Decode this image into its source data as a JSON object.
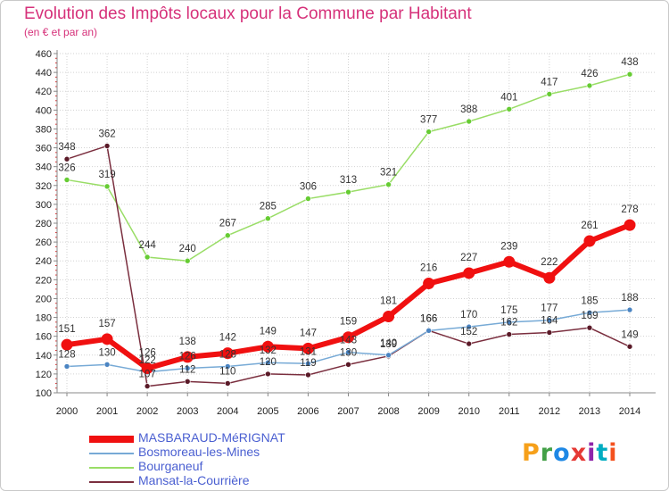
{
  "title": "Evolution des Impôts locaux pour la Commune par Habitant",
  "subtitle": "(en € et par an)",
  "logo": {
    "text": "Proxiti",
    "colors": [
      "#f6a01a",
      "#43a047",
      "#1e88e5",
      "#e53935",
      "#8e24aa",
      "#00acc1",
      "#f4511e"
    ]
  },
  "chart_data": {
    "type": "line",
    "title": "Evolution des Impôts locaux pour la Commune par Habitant",
    "subtitle": "(en € et par an)",
    "xlabel": "",
    "ylabel": "",
    "ylim": [
      100,
      460
    ],
    "ytick_step": 20,
    "grid": true,
    "legend_position": "bottom-left",
    "x": [
      2000,
      2001,
      2002,
      2003,
      2004,
      2005,
      2006,
      2007,
      2008,
      2009,
      2010,
      2011,
      2012,
      2013,
      2014
    ],
    "series": [
      {
        "name": "Bourganeuf",
        "color": "#99dd66",
        "marker_color": "#66cc33",
        "width": 1.5,
        "values": [
          326,
          319,
          244,
          240,
          267,
          285,
          306,
          313,
          321,
          377,
          388,
          401,
          417,
          426,
          438
        ]
      },
      {
        "name": "Mansat-la-Courrière",
        "color": "#7a2e3e",
        "marker_color": "#5a1a28",
        "width": 1.5,
        "values": [
          348,
          362,
          107,
          112,
          110,
          120,
          119,
          130,
          139,
          166,
          152,
          162,
          164,
          169,
          149
        ]
      },
      {
        "name": "Bosmoreau-les-Mines",
        "color": "#77aad6",
        "marker_color": "#4a84c2",
        "width": 1.5,
        "values": [
          128,
          130,
          122,
          126,
          128,
          132,
          131,
          143,
          140,
          166,
          170,
          175,
          177,
          185,
          188
        ]
      },
      {
        "name": "MASBARAUD-MéRIGNAT",
        "color": "#f01010",
        "marker_color": "#f01010",
        "width": 6,
        "values": [
          151,
          157,
          126,
          138,
          142,
          149,
          147,
          159,
          181,
          216,
          227,
          239,
          222,
          261,
          278
        ]
      }
    ],
    "legend_order": [
      "MASBARAUD-MéRIGNAT",
      "Bosmoreau-les-Mines",
      "Bourganeuf",
      "Mansat-la-Courrière"
    ]
  }
}
